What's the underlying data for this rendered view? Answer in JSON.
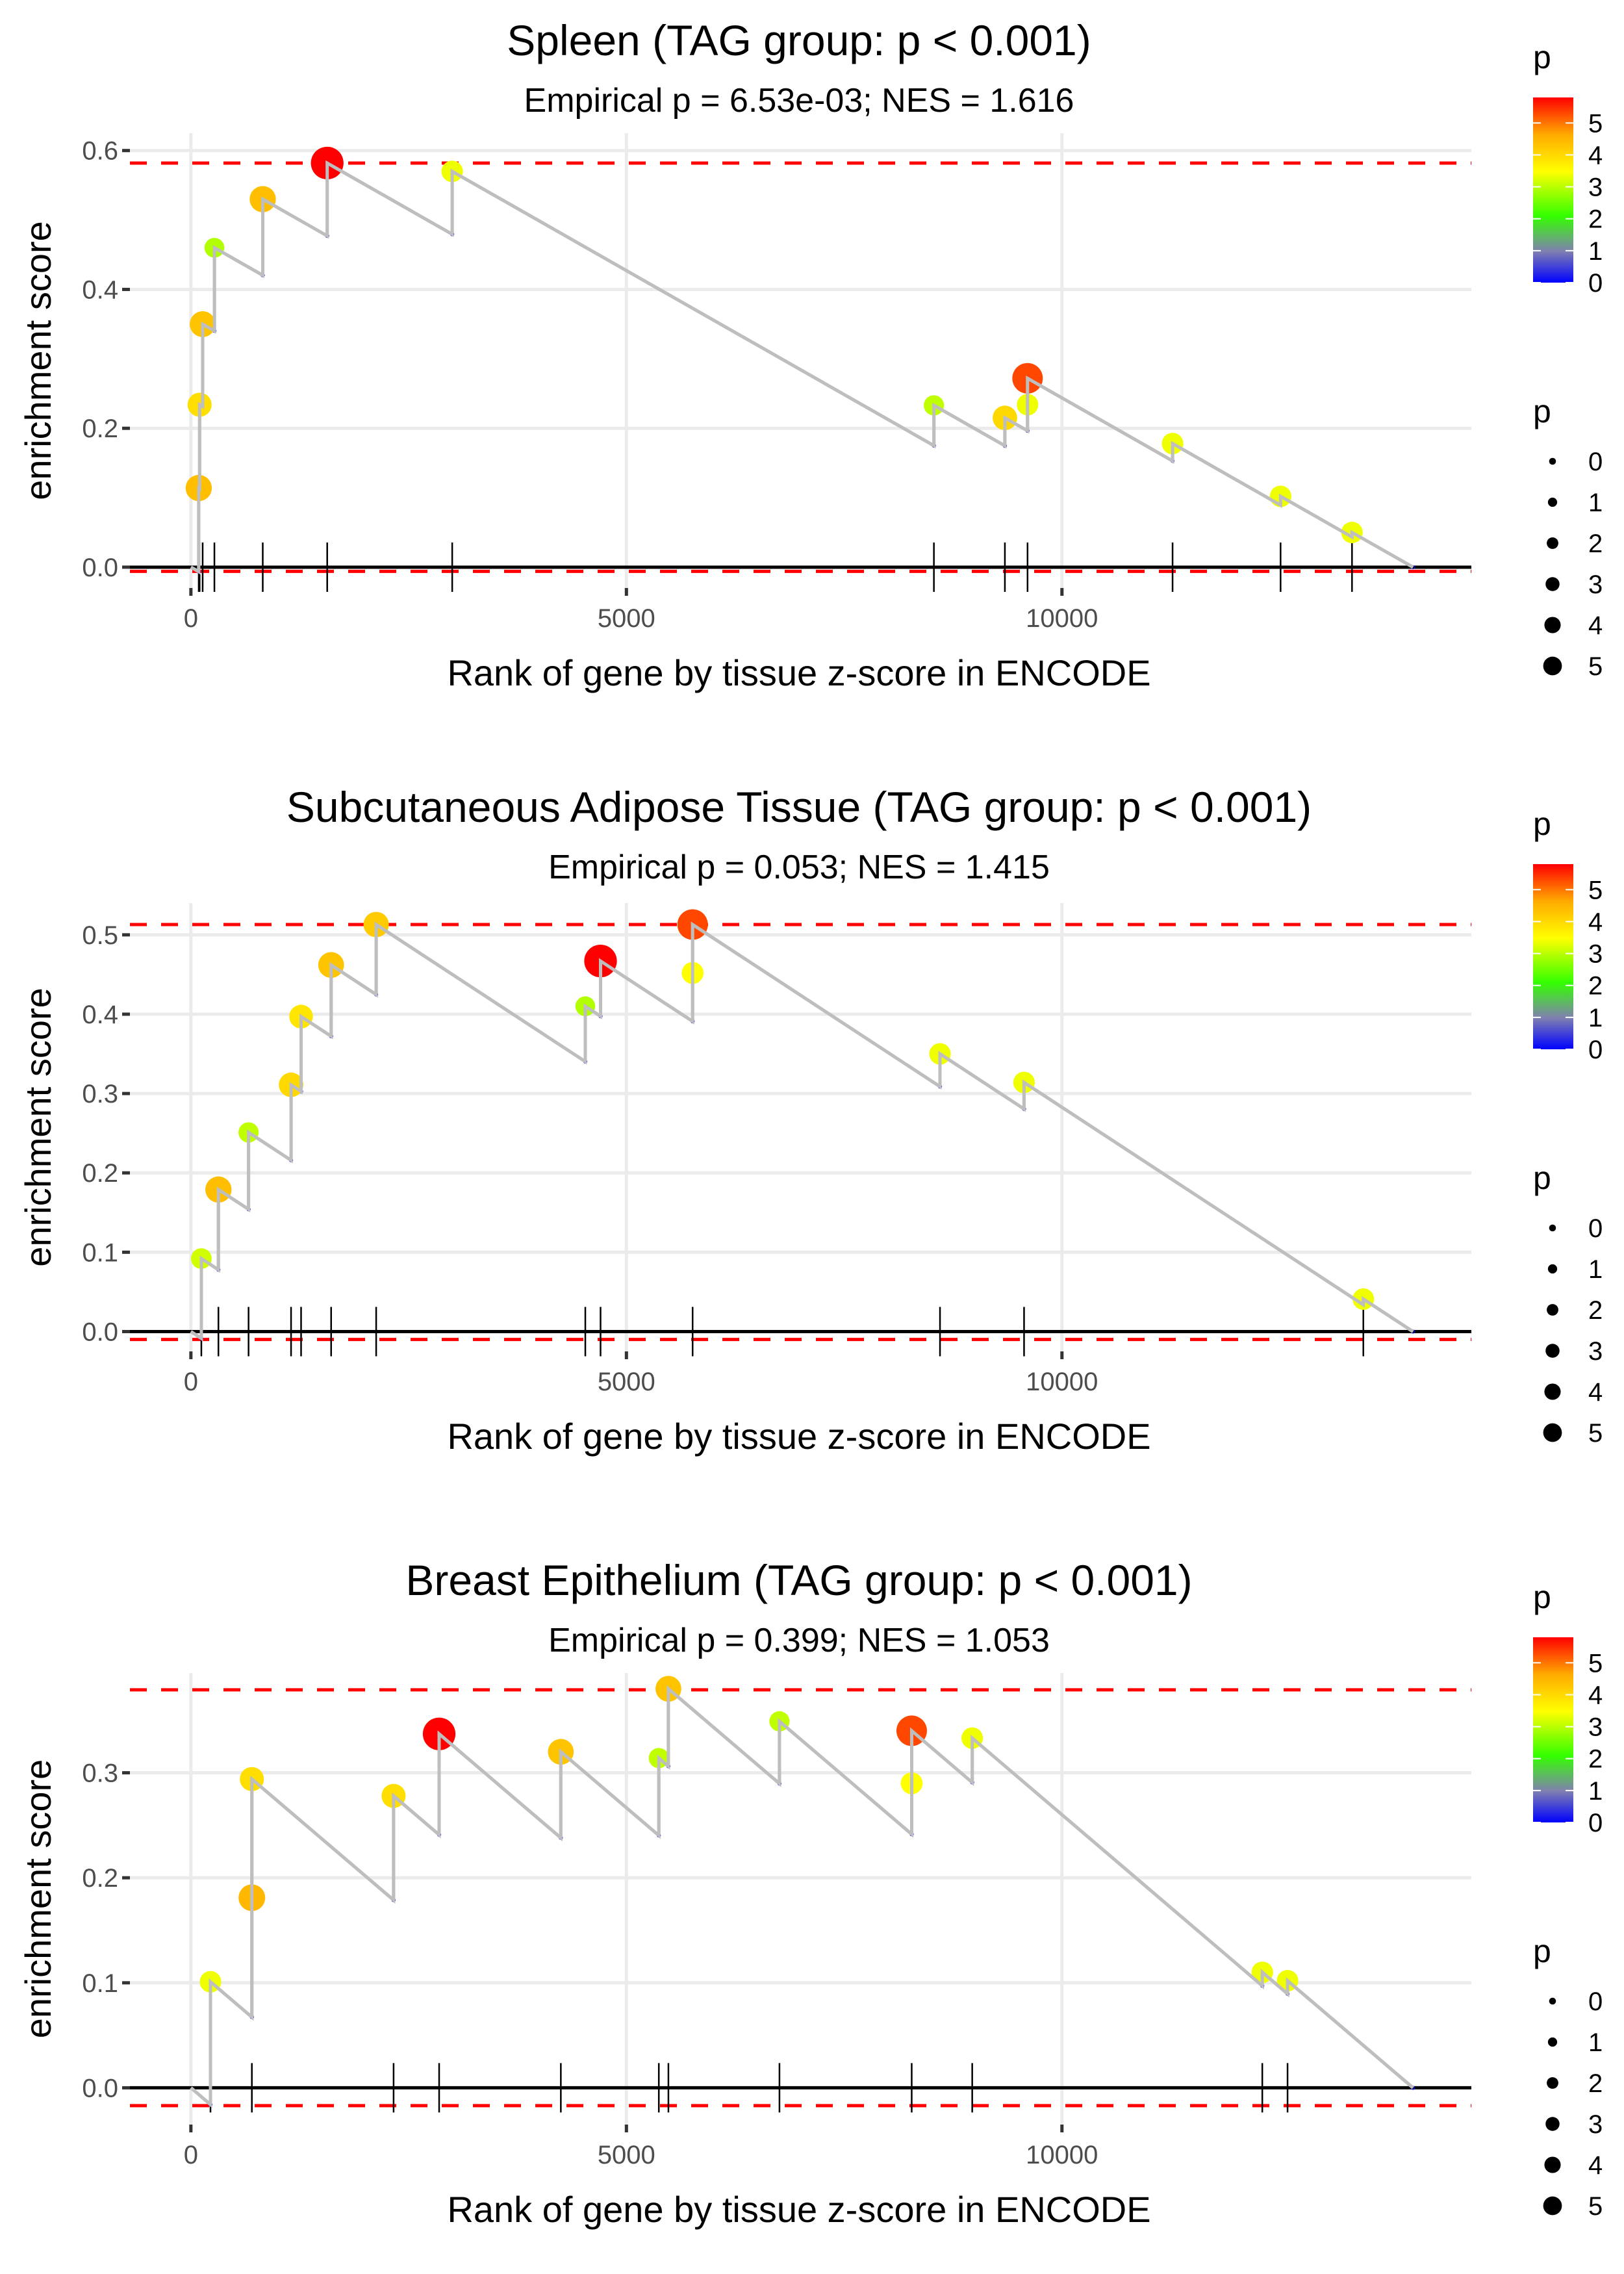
{
  "chart_data": [
    {
      "type": "line",
      "title": "Spleen (TAG group: p < 0.001)",
      "subtitle": "Empirical p = 6.53e-03; NES = 1.616",
      "xlabel": "Rank of gene by tissue z-score in ENCODE",
      "ylabel": "enrichment score",
      "xlim": [
        -700,
        14700
      ],
      "ylim": [
        -0.03,
        0.625
      ],
      "xticks": [
        0,
        5000,
        10000
      ],
      "xtick_labels": [
        "0",
        "5000",
        "10000"
      ],
      "yticks": [
        0.0,
        0.2,
        0.4,
        0.6
      ],
      "ytick_labels": [
        "0.0",
        "0.2",
        "0.4",
        "0.6"
      ],
      "n_genes": 14030,
      "max_es_line": 0.582,
      "min_es_line": -0.006,
      "hits": [
        {
          "rank": 90,
          "es": 0.114,
          "p": 4.3
        },
        {
          "rank": 100,
          "es": 0.234,
          "p": 3.8
        },
        {
          "rank": 135,
          "es": 0.35,
          "p": 4.2
        },
        {
          "rank": 270,
          "es": 0.46,
          "p": 2.8
        },
        {
          "rank": 825,
          "es": 0.53,
          "p": 4.3
        },
        {
          "rank": 1565,
          "es": 0.582,
          "p": 5.8
        },
        {
          "rank": 3000,
          "es": 0.57,
          "p": 3.2
        },
        {
          "rank": 8530,
          "es": 0.233,
          "p": 2.9
        },
        {
          "rank": 9345,
          "es": 0.215,
          "p": 3.9
        },
        {
          "rank": 9605,
          "es": 0.234,
          "p": 3.2
        },
        {
          "rank": 9605,
          "es": 0.272,
          "p": 5.3
        },
        {
          "rank": 11270,
          "es": 0.178,
          "p": 3.2
        },
        {
          "rank": 12510,
          "es": 0.102,
          "p": 3.2
        },
        {
          "rank": 13330,
          "es": 0.05,
          "p": 3.2
        }
      ]
    },
    {
      "type": "line",
      "title": "Subcutaneous Adipose Tissue (TAG group: p < 0.001)",
      "subtitle": "Empirical p = 0.053; NES = 1.415",
      "xlabel": "Rank of gene by tissue z-score in ENCODE",
      "ylabel": "enrichment score",
      "xlim": [
        -700,
        14700
      ],
      "ylim": [
        -0.025,
        0.54
      ],
      "xticks": [
        0,
        5000,
        10000
      ],
      "xtick_labels": [
        "0",
        "5000",
        "10000"
      ],
      "yticks": [
        0.0,
        0.1,
        0.2,
        0.3,
        0.4,
        0.5
      ],
      "ytick_labels": [
        "0.0",
        "0.1",
        "0.2",
        "0.3",
        "0.4",
        "0.5"
      ],
      "n_genes": 14030,
      "max_es_line": 0.513,
      "min_es_line": -0.01,
      "hits": [
        {
          "rank": 120,
          "es": 0.092,
          "p": 3.0
        },
        {
          "rank": 316,
          "es": 0.179,
          "p": 4.3
        },
        {
          "rank": 662,
          "es": 0.251,
          "p": 2.9
        },
        {
          "rank": 1150,
          "es": 0.311,
          "p": 3.9
        },
        {
          "rank": 1265,
          "es": 0.397,
          "p": 3.7
        },
        {
          "rank": 1610,
          "es": 0.462,
          "p": 4.2
        },
        {
          "rank": 2127,
          "es": 0.513,
          "p": 4.1
        },
        {
          "rank": 4528,
          "es": 0.41,
          "p": 2.8
        },
        {
          "rank": 4703,
          "es": 0.467,
          "p": 5.8
        },
        {
          "rank": 5760,
          "es": 0.452,
          "p": 3.3
        },
        {
          "rank": 5760,
          "es": 0.513,
          "p": 5.3
        },
        {
          "rank": 8600,
          "es": 0.35,
          "p": 3.2
        },
        {
          "rank": 9565,
          "es": 0.314,
          "p": 3.2
        },
        {
          "rank": 13460,
          "es": 0.041,
          "p": 3.2
        }
      ]
    },
    {
      "type": "line",
      "title": "Breast Epithelium (TAG group: p < 0.001)",
      "subtitle": "Empirical p = 0.399; NES = 1.053",
      "xlabel": "Rank of gene by tissue z-score in ENCODE",
      "ylabel": "enrichment score",
      "xlim": [
        -700,
        14700
      ],
      "ylim": [
        -0.035,
        0.395
      ],
      "xticks": [
        0,
        5000,
        10000
      ],
      "xtick_labels": [
        "0",
        "5000",
        "10000"
      ],
      "yticks": [
        0.0,
        0.1,
        0.2,
        0.3
      ],
      "ytick_labels": [
        "0.0",
        "0.1",
        "0.2",
        "0.3"
      ],
      "n_genes": 14030,
      "max_es_line": 0.379,
      "min_es_line": -0.017,
      "hits": [
        {
          "rank": 225,
          "es": 0.101,
          "p": 3.2
        },
        {
          "rank": 700,
          "es": 0.181,
          "p": 4.4
        },
        {
          "rank": 700,
          "es": 0.294,
          "p": 3.8
        },
        {
          "rank": 2327,
          "es": 0.278,
          "p": 3.8
        },
        {
          "rank": 2850,
          "es": 0.337,
          "p": 5.8
        },
        {
          "rank": 4247,
          "es": 0.32,
          "p": 4.2
        },
        {
          "rank": 5372,
          "es": 0.314,
          "p": 2.9
        },
        {
          "rank": 5482,
          "es": 0.38,
          "p": 4.2
        },
        {
          "rank": 6757,
          "es": 0.349,
          "p": 2.9
        },
        {
          "rank": 8275,
          "es": 0.29,
          "p": 3.3
        },
        {
          "rank": 8275,
          "es": 0.34,
          "p": 5.3
        },
        {
          "rank": 8970,
          "es": 0.333,
          "p": 3.2
        },
        {
          "rank": 12300,
          "es": 0.11,
          "p": 3.2
        },
        {
          "rank": 12590,
          "es": 0.102,
          "p": 3.2
        }
      ]
    }
  ],
  "legend": {
    "color_title": "p",
    "color_ticks": [
      "0",
      "1",
      "2",
      "3",
      "4",
      "5"
    ],
    "color_range": [
      0,
      5.8
    ],
    "color_stops": [
      "#0000ff",
      "#7f7fbf",
      "#33ff00",
      "#ffff00",
      "#ffa500",
      "#ff0000"
    ],
    "size_title": "p",
    "size_labels": [
      "0",
      "1",
      "2",
      "3",
      "4",
      "5"
    ]
  },
  "colors": {
    "line": "#bebebe",
    "dashed": "#ff0000",
    "grid": "#ebebeb",
    "zero_line": "#000000"
  }
}
